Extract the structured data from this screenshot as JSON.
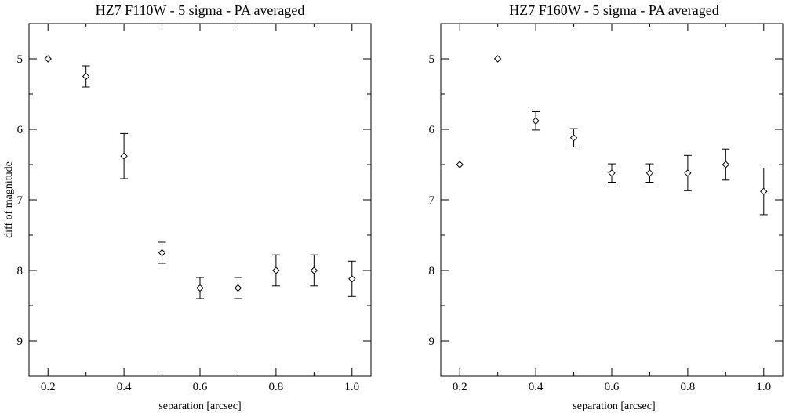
{
  "chart_data": [
    {
      "type": "scatter",
      "title": "HZ7  F110W -  5 sigma - PA averaged",
      "xlabel": "separation [arcsec]",
      "ylabel": "diff of magnitude",
      "xlim": [
        0.15,
        1.05
      ],
      "ylim": [
        9.5,
        4.5
      ],
      "y_inverted": true,
      "grid": false,
      "xticks": [
        0.2,
        0.4,
        0.6,
        0.8,
        1.0
      ],
      "xtick_labels": [
        "0.2",
        "0.4",
        "0.6",
        "0.8",
        "1.0"
      ],
      "yticks": [
        5,
        6,
        7,
        8,
        9
      ],
      "ytick_labels": [
        "5",
        "6",
        "7",
        "8",
        "9"
      ],
      "series": [
        {
          "marker": "diamond",
          "x": [
            0.2,
            0.3,
            0.4,
            0.5,
            0.6,
            0.7,
            0.8,
            0.9,
            1.0
          ],
          "y": [
            5.0,
            5.25,
            6.38,
            7.75,
            8.25,
            8.25,
            8.0,
            8.0,
            8.12
          ],
          "yerr": [
            0.0,
            0.15,
            0.32,
            0.15,
            0.15,
            0.15,
            0.22,
            0.22,
            0.25
          ]
        }
      ]
    },
    {
      "type": "scatter",
      "title": "HZ7  F160W -  5 sigma - PA averaged",
      "xlabel": "separation [arcsec]",
      "ylabel": "",
      "xlim": [
        0.15,
        1.05
      ],
      "ylim": [
        9.5,
        4.5
      ],
      "y_inverted": true,
      "grid": false,
      "xticks": [
        0.2,
        0.4,
        0.6,
        0.8,
        1.0
      ],
      "xtick_labels": [
        "0.2",
        "0.4",
        "0.6",
        "0.8",
        "1.0"
      ],
      "yticks": [
        5,
        6,
        7,
        8,
        9
      ],
      "ytick_labels": [
        "5",
        "6",
        "7",
        "8",
        "9"
      ],
      "series": [
        {
          "marker": "diamond",
          "x": [
            0.2,
            0.3,
            0.4,
            0.5,
            0.6,
            0.7,
            0.8,
            0.9,
            1.0
          ],
          "y": [
            6.5,
            5.0,
            5.88,
            6.12,
            6.62,
            6.62,
            6.62,
            6.5,
            6.88
          ],
          "yerr": [
            0.0,
            0.0,
            0.13,
            0.13,
            0.13,
            0.13,
            0.25,
            0.22,
            0.33
          ]
        }
      ]
    }
  ]
}
